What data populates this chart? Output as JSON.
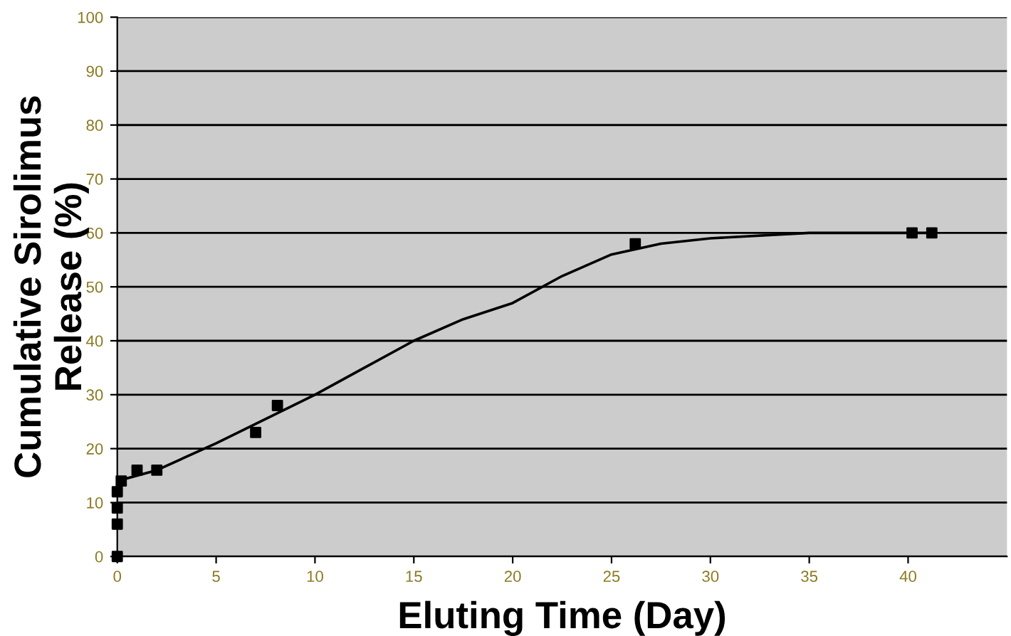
{
  "chart_data": {
    "type": "scatter",
    "xlabel": "Eluting Time (Day)",
    "ylabel": "Cumulative Sirolimus\nRelease (%)",
    "xlim": [
      0,
      45
    ],
    "xticks": [
      0,
      5,
      10,
      15,
      20,
      25,
      30,
      35,
      40
    ],
    "ylim": [
      0,
      100
    ],
    "yticks": [
      0,
      10,
      20,
      30,
      40,
      50,
      60,
      70,
      80,
      90,
      100
    ],
    "grid": "y",
    "series": [
      {
        "marker": "square",
        "color": "#000000",
        "x": [
          0,
          0,
          0,
          0,
          0.2,
          1,
          2,
          7,
          8.1,
          26.2,
          40.2,
          41.2
        ],
        "values": [
          0,
          6,
          9,
          12,
          14,
          16,
          16,
          23,
          28,
          58,
          60,
          60
        ]
      },
      {
        "type": "line",
        "marker": "none",
        "color": "#000000",
        "x": [
          0,
          2,
          5,
          10,
          12.5,
          15,
          17.5,
          20,
          22.5,
          25,
          27.5,
          30,
          35,
          41.2
        ],
        "values": [
          14,
          16,
          21,
          30,
          35,
          40,
          44,
          47,
          52,
          56,
          58,
          59,
          60,
          60
        ]
      }
    ]
  }
}
